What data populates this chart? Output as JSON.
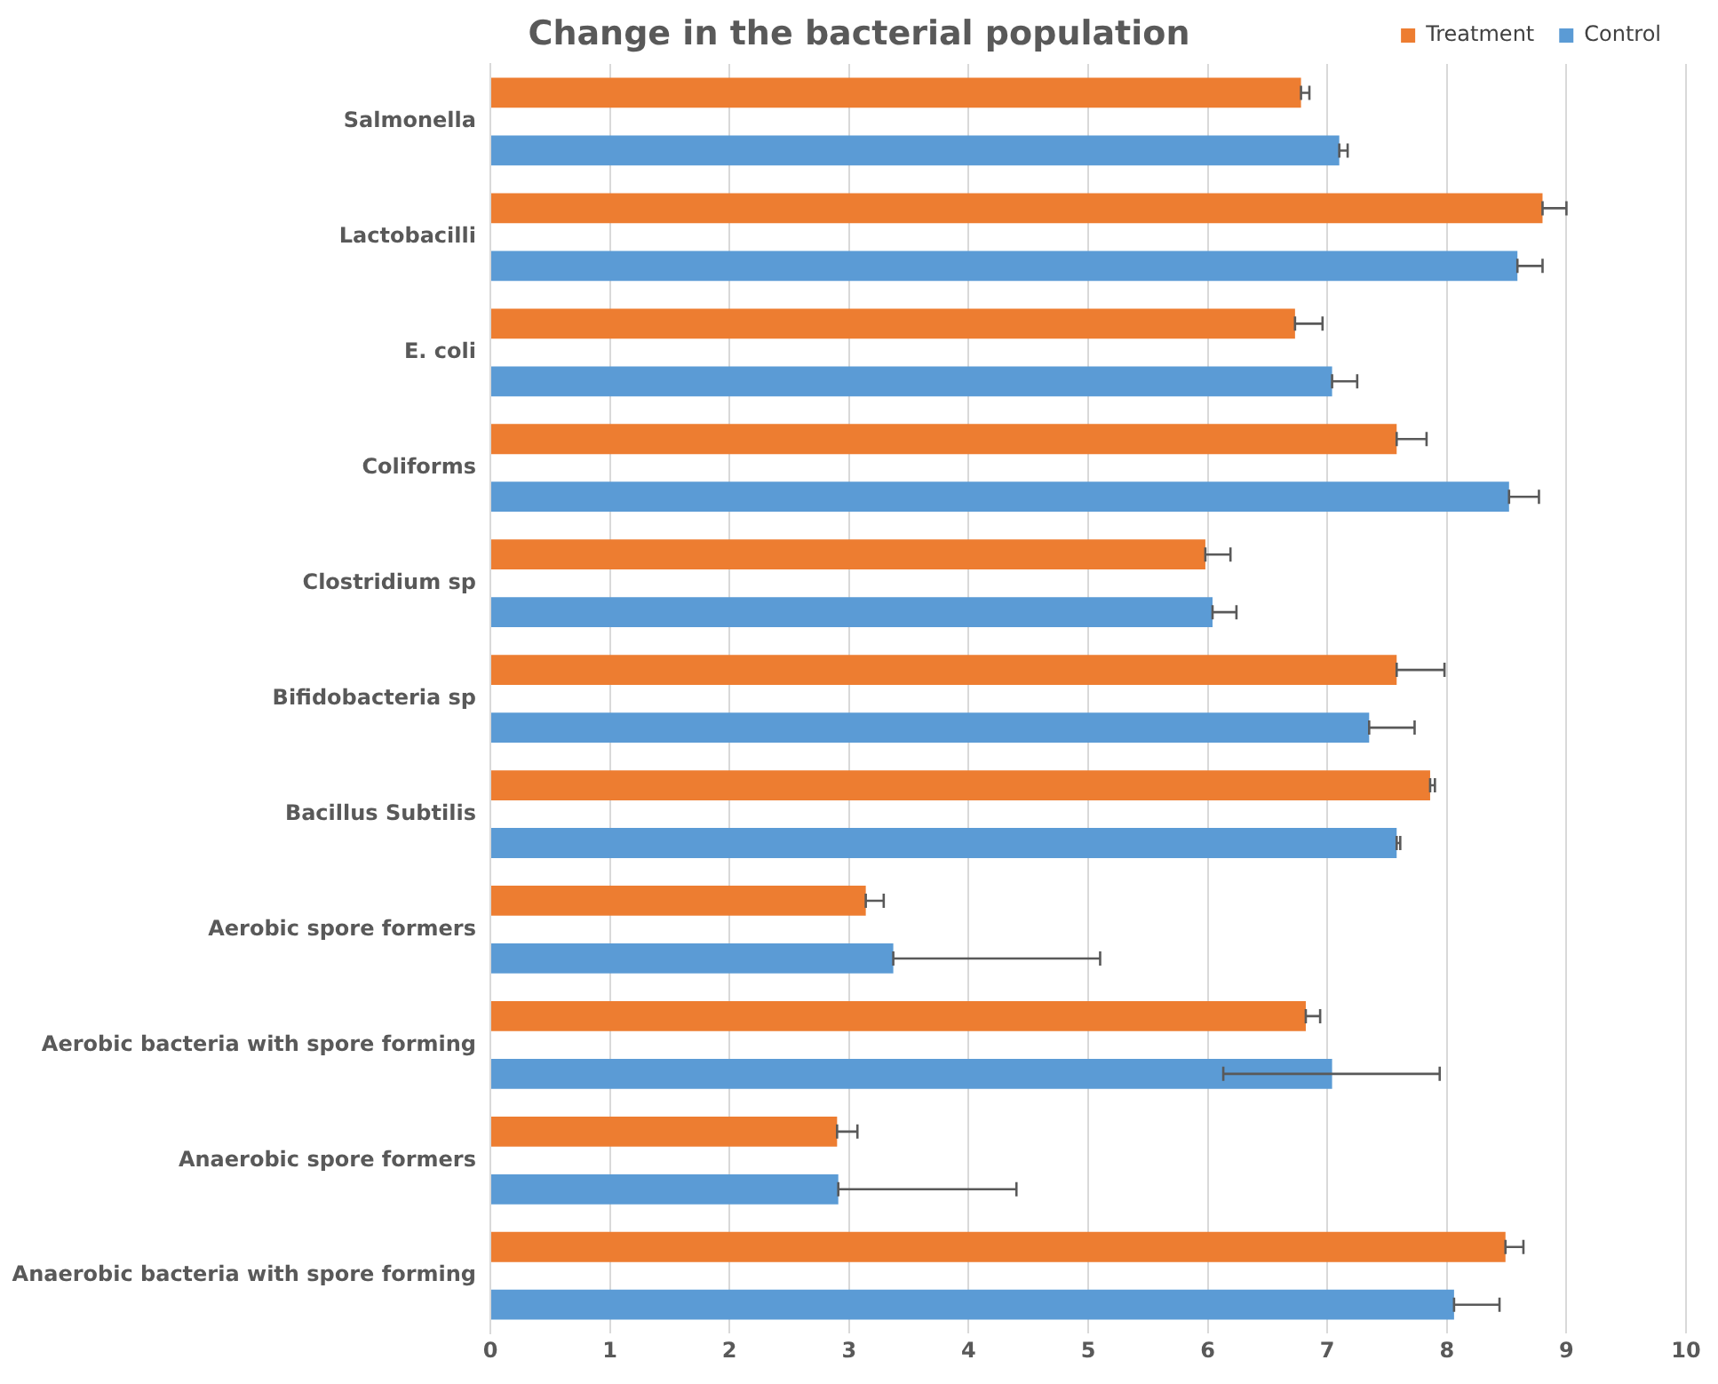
{
  "chart_data": {
    "type": "bar",
    "orientation": "horizontal",
    "title": "Change in the bacterial population",
    "categories": [
      "Salmonella",
      "Lactobacilli",
      "E. coli",
      "Coliforms",
      "Clostridium sp",
      "Bifidobacteria sp",
      "Bacillus Subtilis",
      "Aerobic spore formers",
      "Aerobic bacteria with spore forming",
      "Anaerobic spore formers",
      "Anaerobic bacteria with spore forming"
    ],
    "series": [
      {
        "name": "Treatment",
        "color": "#ed7d31",
        "values": [
          6.78,
          8.8,
          6.73,
          7.58,
          5.98,
          7.58,
          7.86,
          3.14,
          6.82,
          2.9,
          8.49
        ],
        "errors": [
          [
            6.78,
            6.85
          ],
          [
            8.8,
            9.0
          ],
          [
            6.73,
            6.96
          ],
          [
            7.58,
            7.83
          ],
          [
            5.98,
            6.19
          ],
          [
            7.58,
            7.98
          ],
          [
            7.86,
            7.9
          ],
          [
            3.14,
            3.29
          ],
          [
            6.82,
            6.94
          ],
          [
            2.9,
            3.07
          ],
          [
            8.49,
            8.64
          ]
        ]
      },
      {
        "name": "Control",
        "color": "#5b9bd5",
        "values": [
          7.1,
          8.59,
          7.04,
          8.52,
          6.04,
          7.35,
          7.58,
          3.37,
          7.04,
          2.91,
          8.06
        ],
        "errors": [
          [
            7.1,
            7.17
          ],
          [
            8.59,
            8.8
          ],
          [
            7.04,
            7.25
          ],
          [
            8.52,
            8.77
          ],
          [
            6.04,
            6.24
          ],
          [
            7.35,
            7.73
          ],
          [
            7.58,
            7.61
          ],
          [
            3.37,
            5.1
          ],
          [
            6.13,
            7.94
          ],
          [
            2.91,
            4.4
          ],
          [
            8.06,
            8.44
          ]
        ]
      }
    ],
    "xlim": [
      0,
      10
    ],
    "xticks": [
      0,
      1,
      2,
      3,
      4,
      5,
      6,
      7,
      8,
      9,
      10
    ],
    "grid": "x",
    "legend": "top right"
  }
}
